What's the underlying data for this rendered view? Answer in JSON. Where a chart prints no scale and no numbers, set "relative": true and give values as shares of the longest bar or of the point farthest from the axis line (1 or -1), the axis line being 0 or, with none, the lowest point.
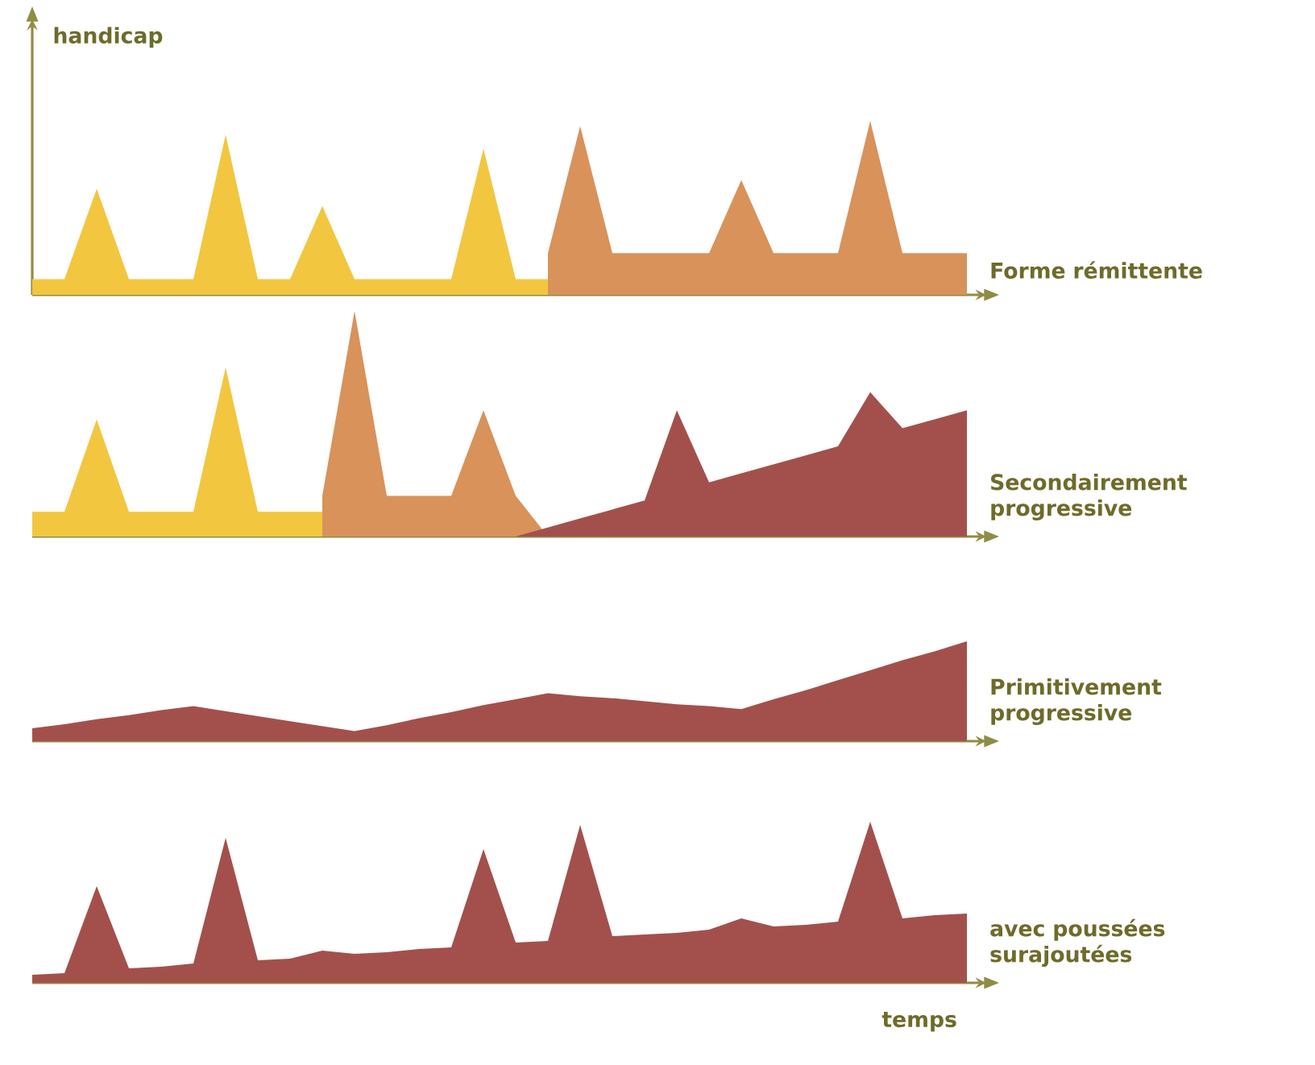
{
  "chart_data": [
    {
      "type": "area",
      "annotations": [
        "Forme rémittente"
      ],
      "ylabel": "handicap",
      "relative": true,
      "categories": [
        null,
        null,
        null,
        null,
        null,
        null,
        null,
        null,
        null,
        null,
        null,
        null,
        null,
        null,
        null,
        null,
        null,
        null,
        null,
        null,
        null,
        null,
        null,
        null,
        null,
        null,
        null,
        null,
        null,
        null
      ],
      "series": [
        {
          "color": "#f3c640",
          "values": [
            0.09,
            0.09,
            0.61,
            0.09,
            0.09,
            0.09,
            0.92,
            0.09,
            0.09,
            0.51,
            0.09,
            0.09,
            0.09,
            0.09,
            0.84,
            0.09,
            0.09,
            null,
            null,
            null,
            null,
            null,
            null,
            null,
            null,
            null,
            null,
            null,
            null,
            null
          ]
        },
        {
          "color": "#d8925a",
          "values": [
            null,
            null,
            null,
            null,
            null,
            null,
            null,
            null,
            null,
            null,
            null,
            null,
            null,
            null,
            null,
            null,
            0.24,
            0.97,
            0.24,
            0.24,
            0.24,
            0.24,
            0.66,
            0.24,
            0.24,
            0.24,
            1.0,
            0.24,
            0.24,
            0.24
          ]
        }
      ]
    },
    {
      "type": "area",
      "annotations": [
        "Secondairement progressive"
      ],
      "relative": true,
      "categories": [
        null,
        null,
        null,
        null,
        null,
        null,
        null,
        null,
        null,
        null,
        null,
        null,
        null,
        null,
        null,
        null,
        null,
        null,
        null,
        null,
        null,
        null,
        null,
        null,
        null,
        null,
        null,
        null,
        null,
        null
      ],
      "series": [
        {
          "color": "#f3c640",
          "values": [
            0.11,
            0.11,
            0.52,
            0.11,
            0.11,
            0.11,
            0.75,
            0.11,
            0.11,
            0.11,
            null,
            null,
            null,
            null,
            null,
            null,
            null,
            null,
            null,
            null,
            null,
            null,
            null,
            null,
            null,
            null,
            null,
            null,
            null,
            null
          ]
        },
        {
          "color": "#d8925a",
          "values": [
            null,
            null,
            null,
            null,
            null,
            null,
            null,
            null,
            null,
            0.18,
            1.0,
            0.18,
            0.18,
            0.18,
            0.56,
            0.18,
            0.0,
            null,
            null,
            null,
            null,
            null,
            null,
            null,
            null,
            null,
            null,
            null,
            null,
            null
          ]
        },
        {
          "color": "#a3504c",
          "values": [
            null,
            null,
            null,
            null,
            null,
            null,
            null,
            null,
            null,
            null,
            null,
            null,
            null,
            null,
            null,
            0.0,
            0.04,
            0.08,
            0.12,
            0.16,
            0.56,
            0.24,
            0.28,
            0.32,
            0.36,
            0.4,
            0.64,
            0.48,
            0.52,
            0.56
          ]
        }
      ]
    },
    {
      "type": "area",
      "annotations": [
        "Primitivement progressive"
      ],
      "relative": true,
      "categories": [
        null,
        null,
        null,
        null,
        null,
        null,
        null,
        null,
        null,
        null,
        null,
        null,
        null,
        null,
        null,
        null,
        null,
        null,
        null,
        null,
        null,
        null,
        null,
        null,
        null,
        null,
        null,
        null,
        null,
        null
      ],
      "series": [
        {
          "color": "#a3504c",
          "values": [
            0.13,
            0.17,
            0.22,
            0.26,
            0.31,
            0.35,
            0.3,
            0.25,
            0.2,
            0.15,
            0.1,
            0.16,
            0.23,
            0.29,
            0.36,
            0.42,
            0.48,
            0.45,
            0.43,
            0.4,
            0.37,
            0.35,
            0.32,
            0.42,
            0.51,
            0.61,
            0.71,
            0.81,
            0.9,
            1.0
          ]
        }
      ]
    },
    {
      "type": "area",
      "annotations": [
        "avec poussées surajoutées"
      ],
      "xlabel": "temps",
      "relative": true,
      "categories": [
        null,
        null,
        null,
        null,
        null,
        null,
        null,
        null,
        null,
        null,
        null,
        null,
        null,
        null,
        null,
        null,
        null,
        null,
        null,
        null,
        null,
        null,
        null,
        null,
        null,
        null,
        null,
        null,
        null,
        null
      ],
      "series": [
        {
          "color": "#a3504c",
          "values": [
            0.05,
            0.06,
            0.6,
            0.09,
            0.1,
            0.12,
            0.9,
            0.14,
            0.15,
            0.2,
            0.18,
            0.19,
            0.21,
            0.22,
            0.83,
            0.25,
            0.26,
            0.98,
            0.29,
            0.3,
            0.31,
            0.33,
            0.4,
            0.35,
            0.36,
            0.38,
            1.0,
            0.4,
            0.42,
            0.43
          ]
        }
      ]
    }
  ]
}
